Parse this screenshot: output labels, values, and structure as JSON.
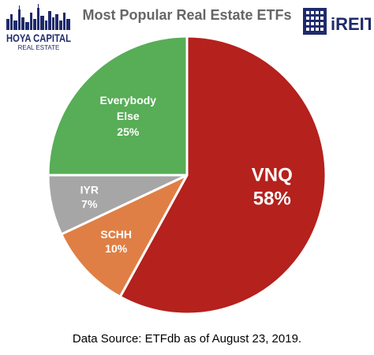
{
  "header": {
    "title": "Most Popular Real Estate ETFs",
    "logo_left": {
      "line1": "HOYA CAPITAL",
      "line2": "REAL ESTATE",
      "color": "#1f2a6b"
    },
    "logo_right": {
      "text": "iREIT",
      "color": "#1f2a6b"
    }
  },
  "chart_data": {
    "type": "pie",
    "title": "Most Popular Real Estate ETFs",
    "slices": [
      {
        "label": "VNQ",
        "value": 58,
        "value_label": "58%",
        "color": "#b5211c"
      },
      {
        "label": "SCHH",
        "value": 10,
        "value_label": "10%",
        "color": "#e07f45"
      },
      {
        "label": "IYR",
        "value": 7,
        "value_label": "7%",
        "color": "#a6a6a6"
      },
      {
        "label": "Everybody Else",
        "label_lines": [
          "Everybody",
          "Else"
        ],
        "value": 25,
        "value_label": "25%",
        "color": "#58ad57"
      }
    ],
    "start": "12 o'clock",
    "direction": "clockwise"
  },
  "footer": {
    "source": "Data Source: ETFdb as of August 23, 2019."
  }
}
